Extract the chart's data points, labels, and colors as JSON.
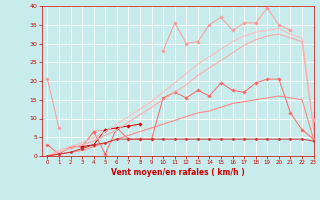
{
  "x": [
    0,
    1,
    2,
    3,
    4,
    5,
    6,
    7,
    8,
    9,
    10,
    11,
    12,
    13,
    14,
    15,
    16,
    17,
    18,
    19,
    20,
    21,
    22,
    23
  ],
  "series": [
    {
      "color": "#ff9999",
      "lw": 0.7,
      "marker": "D",
      "ms": 1.8,
      "y": [
        20.5,
        7.5,
        null,
        null,
        6.5,
        7.0,
        null,
        null,
        null,
        null,
        28.0,
        35.5,
        30.0,
        30.5,
        35.0,
        37.0,
        33.5,
        35.5,
        35.5,
        39.5,
        35.0,
        33.5,
        null,
        9.5
      ]
    },
    {
      "color": "#ff6666",
      "lw": 0.7,
      "marker": "D",
      "ms": 1.8,
      "y": [
        3.0,
        0.5,
        2.5,
        2.5,
        6.5,
        0.5,
        7.5,
        4.5,
        4.5,
        4.5,
        15.5,
        17.0,
        15.5,
        17.5,
        16.0,
        19.5,
        17.5,
        17.0,
        19.5,
        20.5,
        20.5,
        11.5,
        7.0,
        4.5
      ]
    },
    {
      "color": "#cc0000",
      "lw": 0.7,
      "marker": "D",
      "ms": 1.8,
      "y": [
        null,
        null,
        null,
        2.5,
        3.0,
        7.0,
        7.5,
        8.0,
        8.5,
        null,
        null,
        null,
        null,
        null,
        null,
        null,
        null,
        null,
        null,
        null,
        null,
        null,
        null,
        null
      ]
    },
    {
      "color": "#ffbbbb",
      "lw": 0.8,
      "marker": null,
      "ms": 0,
      "y": [
        0,
        1.5,
        2.5,
        3.5,
        5.0,
        6.5,
        8.5,
        10.5,
        12.5,
        14.5,
        17.0,
        19.5,
        22.0,
        24.5,
        26.5,
        28.5,
        30.5,
        32.0,
        33.0,
        33.5,
        34.0,
        32.5,
        31.5,
        8.0
      ]
    },
    {
      "color": "#ffaaaa",
      "lw": 0.8,
      "marker": null,
      "ms": 0,
      "y": [
        0,
        1.0,
        2.0,
        3.0,
        4.0,
        5.5,
        7.0,
        9.0,
        11.0,
        13.0,
        15.0,
        17.0,
        19.0,
        21.5,
        23.5,
        25.5,
        27.5,
        29.5,
        31.0,
        32.0,
        32.5,
        31.5,
        30.5,
        7.0
      ]
    },
    {
      "color": "#ff8888",
      "lw": 0.8,
      "marker": null,
      "ms": 0,
      "y": [
        0,
        0.5,
        1.0,
        1.5,
        2.5,
        3.5,
        4.5,
        5.5,
        6.5,
        7.5,
        8.5,
        9.5,
        10.5,
        11.5,
        12.0,
        13.0,
        14.0,
        14.5,
        15.0,
        15.5,
        16.0,
        15.5,
        15.0,
        4.5
      ]
    },
    {
      "color": "#cc3333",
      "lw": 0.7,
      "marker": "D",
      "ms": 1.5,
      "y": [
        0,
        0.5,
        1.0,
        2.0,
        3.0,
        3.5,
        4.5,
        4.5,
        4.5,
        4.5,
        4.5,
        4.5,
        4.5,
        4.5,
        4.5,
        4.5,
        4.5,
        4.5,
        4.5,
        4.5,
        4.5,
        4.5,
        4.5,
        4.0
      ]
    }
  ],
  "xlabel": "Vent moyen/en rafales ( km/h )",
  "xlim": [
    -0.5,
    23
  ],
  "ylim": [
    0,
    40
  ],
  "yticks": [
    0,
    5,
    10,
    15,
    20,
    25,
    30,
    35,
    40
  ],
  "xticks": [
    0,
    1,
    2,
    3,
    4,
    5,
    6,
    7,
    8,
    9,
    10,
    11,
    12,
    13,
    14,
    15,
    16,
    17,
    18,
    19,
    20,
    21,
    22,
    23
  ],
  "bg_color": "#c8ecec",
  "grid_color": "#ffffff",
  "tick_color": "#cc0000",
  "label_color": "#cc0000"
}
